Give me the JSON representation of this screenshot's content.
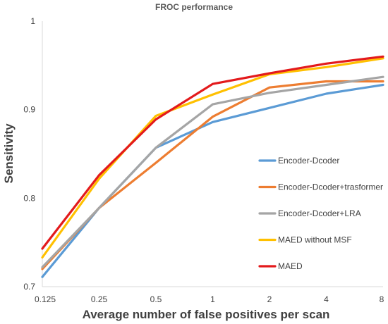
{
  "chart_data": {
    "type": "line",
    "title": "FROC performance",
    "xlabel": "Average number of false positives per scan",
    "ylabel": "Sensitivity",
    "categories": [
      "0.125",
      "0.25",
      "0.5",
      "1",
      "2",
      "4",
      "8"
    ],
    "yticks": [
      "0.7",
      "0.8",
      "0.9",
      "1"
    ],
    "ylim": [
      0.7,
      1.0
    ],
    "grid": false,
    "legend_position": "right",
    "series": [
      {
        "name": "Encoder-Dcoder",
        "color": "#5b9bd5",
        "values": [
          0.711,
          0.789,
          0.857,
          0.886,
          0.902,
          0.918,
          0.928
        ]
      },
      {
        "name": "Encoder-Dcoder+trasformer",
        "color": "#ed7d31",
        "values": [
          0.72,
          0.789,
          0.84,
          0.892,
          0.925,
          0.932,
          0.932
        ]
      },
      {
        "name": "Encoder-Dcoder+LRA",
        "color": "#a5a5a5",
        "values": [
          0.722,
          0.789,
          0.857,
          0.906,
          0.919,
          0.928,
          0.937
        ]
      },
      {
        "name": "MAED without MSF",
        "color": "#ffc000",
        "values": [
          0.733,
          0.822,
          0.893,
          0.917,
          0.94,
          0.948,
          0.958
        ]
      },
      {
        "name": "MAED",
        "color": "#e31a1c",
        "values": [
          0.743,
          0.826,
          0.889,
          0.929,
          0.941,
          0.952,
          0.96
        ]
      }
    ]
  }
}
